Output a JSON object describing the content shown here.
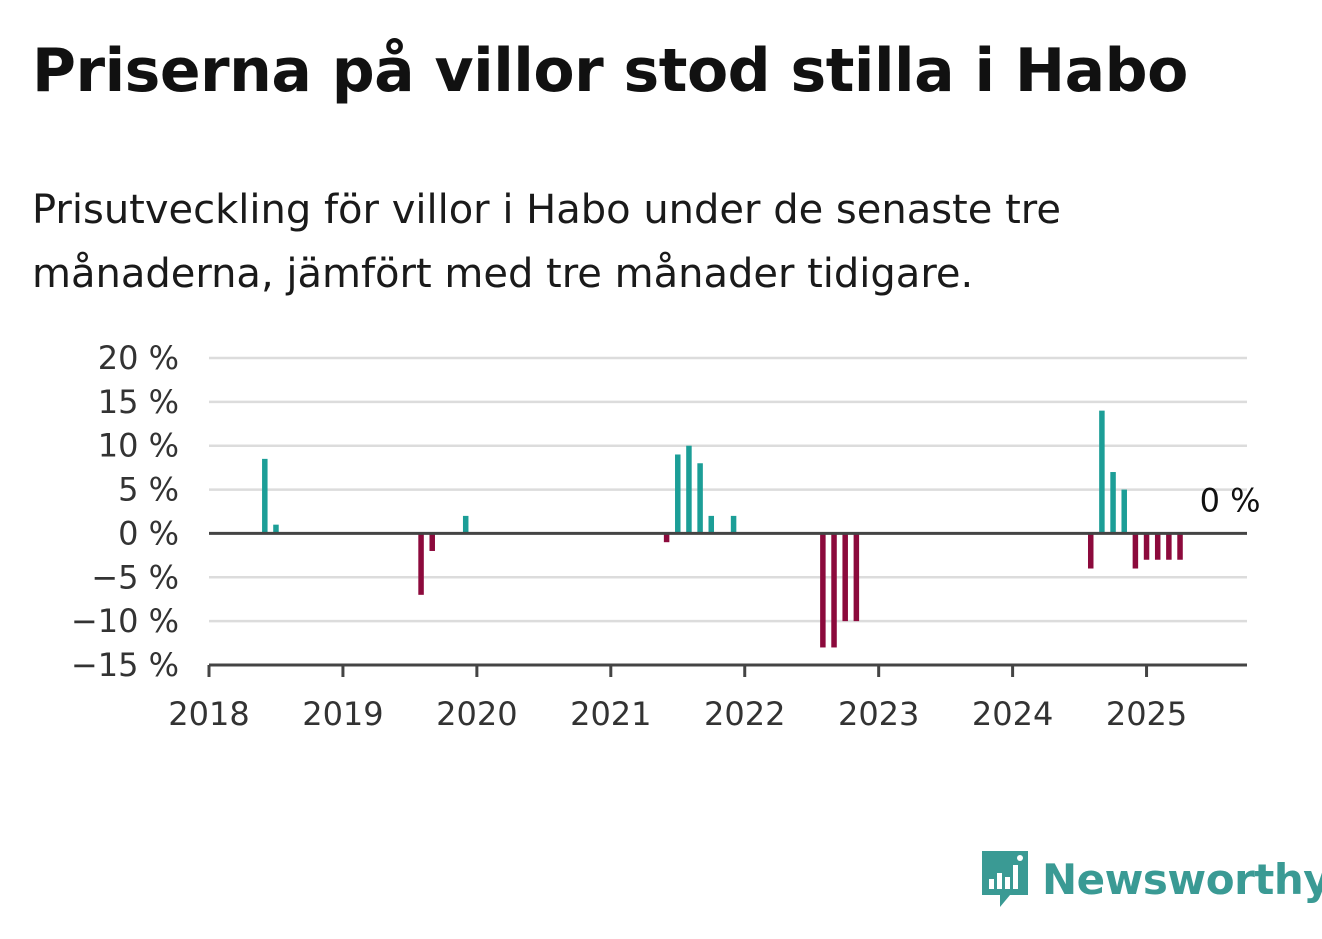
{
  "title": "Priserna på villor stod stilla i Habo",
  "subtitle": "Prisutveckling för villor i Habo under de senaste tre månaderna, jämfört med tre månader tidigare.",
  "brand": {
    "name": "Newsworthy",
    "icon": "newsworthy-logo-icon",
    "color": "#3a9a94"
  },
  "chart_data": {
    "type": "bar",
    "title": "",
    "xlabel": "",
    "ylabel": "",
    "ylim": [
      -15,
      20
    ],
    "yticks": [
      20,
      15,
      10,
      5,
      0,
      -5,
      -10,
      -15
    ],
    "ytick_labels": [
      "20 %",
      "15 %",
      "10 %",
      "5 %",
      "0 %",
      "−5 %",
      "−10 %",
      "−15 %"
    ],
    "x_range": [
      "2018-01",
      "2025-10"
    ],
    "xtick_labels": [
      "2018",
      "2019",
      "2020",
      "2021",
      "2022",
      "2023",
      "2024",
      "2025"
    ],
    "end_label": "0 %",
    "positive_color": "#1c9e97",
    "negative_color": "#8c0a3c",
    "grid": true,
    "x": [
      "2018-06",
      "2018-07",
      "2019-08",
      "2019-09",
      "2019-12",
      "2021-06",
      "2021-07",
      "2021-08",
      "2021-09",
      "2021-10",
      "2021-12",
      "2022-08",
      "2022-09",
      "2022-10",
      "2022-11",
      "2024-08",
      "2024-09",
      "2024-10",
      "2024-11",
      "2024-12",
      "2025-01",
      "2025-02",
      "2025-03",
      "2025-04"
    ],
    "values": [
      8.5,
      1,
      -7,
      -2,
      2,
      -1,
      9,
      10,
      8,
      2,
      2,
      -13,
      -13,
      -10,
      -10,
      -4,
      14,
      7,
      5,
      -4,
      -3,
      -3,
      -3,
      -3
    ]
  }
}
